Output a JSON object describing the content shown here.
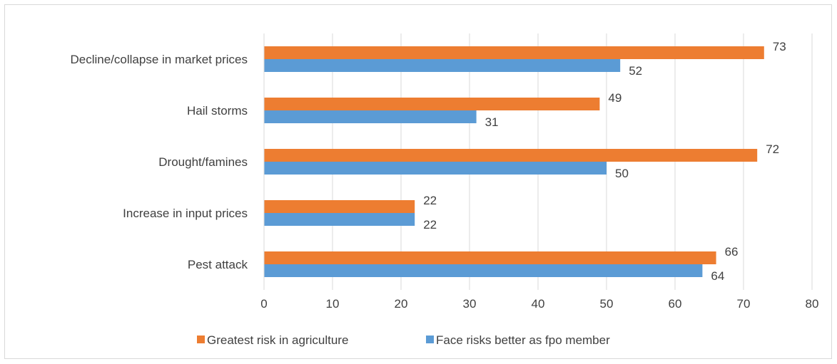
{
  "chart_data": {
    "type": "bar",
    "orientation": "horizontal",
    "categories": [
      "Decline/collapse in market prices",
      "Hail storms",
      "Drought/famines",
      "Increase in input prices",
      "Pest attack"
    ],
    "series": [
      {
        "name": "Greatest risk in agriculture",
        "values": [
          73,
          49,
          72,
          22,
          66
        ],
        "color": "#ED7D31"
      },
      {
        "name": "Face risks better as fpo member",
        "values": [
          52,
          31,
          50,
          22,
          64
        ],
        "color": "#5B9BD5"
      }
    ],
    "xlim": [
      0,
      80
    ],
    "xticks": [
      0,
      10,
      20,
      30,
      40,
      50,
      60,
      70,
      80
    ],
    "grid": true,
    "legend": "bottom",
    "data_labels": true,
    "title": "",
    "xlabel": "",
    "ylabel": ""
  }
}
